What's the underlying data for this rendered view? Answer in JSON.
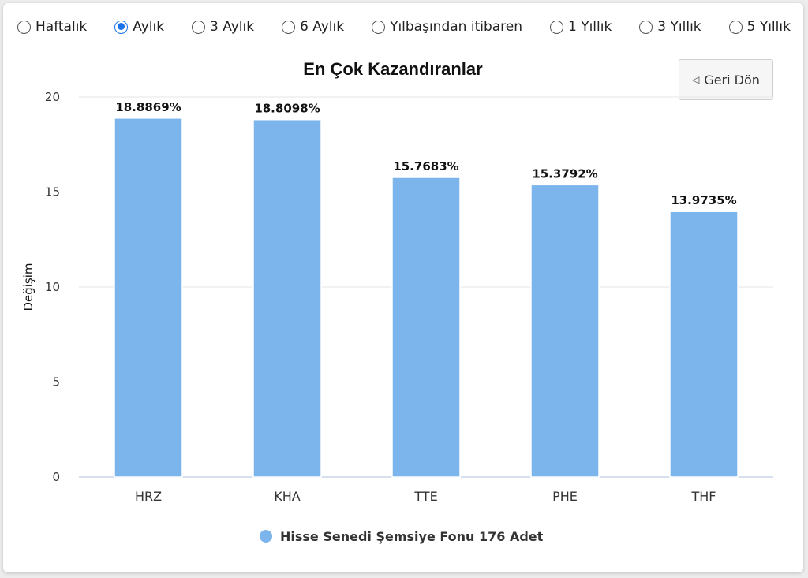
{
  "periods": [
    {
      "label": "Haftalık",
      "checked": false
    },
    {
      "label": "Aylık",
      "checked": true
    },
    {
      "label": "3 Aylık",
      "checked": false
    },
    {
      "label": "6 Aylık",
      "checked": false
    },
    {
      "label": "Yılbaşından itibaren",
      "checked": false
    },
    {
      "label": "1 Yıllık",
      "checked": false
    },
    {
      "label": "3 Yıllık",
      "checked": false
    },
    {
      "label": "5 Yıllık",
      "checked": false
    }
  ],
  "back_button": {
    "label": "Geri Dön",
    "icon": "back-triangle-icon"
  },
  "colors": {
    "bar": "#7cb5ec",
    "grid": "#e6e6e6",
    "axis": "#ccd6eb",
    "radio_accent": "#1a73e8"
  },
  "chart_data": {
    "type": "bar",
    "title": "En Çok Kazandıranlar",
    "ylabel": "Değişim",
    "xlabel": "",
    "categories": [
      "HRZ",
      "KHA",
      "TTE",
      "PHE",
      "THF"
    ],
    "series": [
      {
        "name": "Hisse Senedi Şemsiye Fonu 176 Adet",
        "values": [
          18.8869,
          18.8098,
          15.7683,
          15.3792,
          13.9735
        ],
        "data_labels": [
          "18.8869%",
          "18.8098%",
          "15.7683%",
          "15.3792%",
          "13.9735%"
        ]
      }
    ],
    "ylim": [
      0,
      20
    ],
    "yticks": [
      "0",
      "5",
      "10",
      "15",
      "20"
    ],
    "grid": true,
    "legend_position": "bottom-center"
  }
}
